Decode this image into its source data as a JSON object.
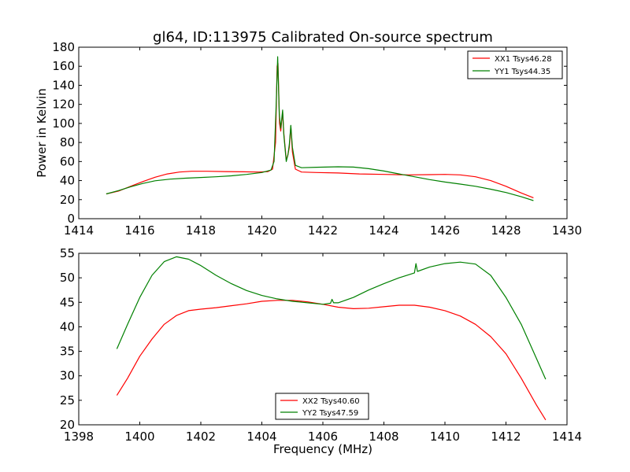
{
  "title": "gl64, ID:113975 Calibrated On-source spectrum",
  "xlabel": "Frequency (MHz)",
  "colors": {
    "red": "#ff0000",
    "green": "#008000"
  },
  "chart_data": [
    {
      "type": "line",
      "ylabel": "Power in Kelvin",
      "xlim": [
        1414,
        1430
      ],
      "ylim": [
        0,
        180
      ],
      "xticks": [
        "1414",
        "1416",
        "1418",
        "1420",
        "1422",
        "1424",
        "1426",
        "1428",
        "1430"
      ],
      "yticks": [
        "0",
        "20",
        "40",
        "60",
        "80",
        "100",
        "120",
        "140",
        "160",
        "180"
      ],
      "legend_position": "top-right",
      "series": [
        {
          "name": "XX1 Tsys46.28",
          "color": "#ff0000",
          "points": [
            [
              1414.9,
              26
            ],
            [
              1415.3,
              29
            ],
            [
              1415.7,
              34
            ],
            [
              1416.1,
              39
            ],
            [
              1416.5,
              43.5
            ],
            [
              1416.9,
              47
            ],
            [
              1417.3,
              49
            ],
            [
              1417.7,
              49.8
            ],
            [
              1418.2,
              49.8
            ],
            [
              1418.8,
              49.5
            ],
            [
              1419.4,
              49.2
            ],
            [
              1419.9,
              49
            ],
            [
              1420.2,
              49.5
            ],
            [
              1420.35,
              52
            ],
            [
              1420.45,
              80
            ],
            [
              1420.5,
              160
            ],
            [
              1420.53,
              163
            ],
            [
              1420.58,
              100
            ],
            [
              1420.62,
              92
            ],
            [
              1420.68,
              112
            ],
            [
              1420.72,
              90
            ],
            [
              1420.8,
              62
            ],
            [
              1420.85,
              66
            ],
            [
              1420.9,
              75
            ],
            [
              1420.95,
              97
            ],
            [
              1421.0,
              70
            ],
            [
              1421.1,
              52
            ],
            [
              1421.3,
              49
            ],
            [
              1421.8,
              48.5
            ],
            [
              1422.5,
              48
            ],
            [
              1423.2,
              47
            ],
            [
              1424,
              46.5
            ],
            [
              1424.8,
              46
            ],
            [
              1425.5,
              46.2
            ],
            [
              1426,
              46.5
            ],
            [
              1426.5,
              46
            ],
            [
              1427,
              44
            ],
            [
              1427.5,
              40
            ],
            [
              1428,
              34
            ],
            [
              1428.5,
              27
            ],
            [
              1428.9,
              22
            ]
          ]
        },
        {
          "name": "YY1 Tsys44.35",
          "color": "#008000",
          "points": [
            [
              1414.9,
              26
            ],
            [
              1415.3,
              29.5
            ],
            [
              1415.7,
              33.5
            ],
            [
              1416.1,
              37
            ],
            [
              1416.5,
              39.8
            ],
            [
              1417,
              41.5
            ],
            [
              1417.5,
              42.5
            ],
            [
              1418,
              43.3
            ],
            [
              1418.5,
              44
            ],
            [
              1419,
              45
            ],
            [
              1419.5,
              46.5
            ],
            [
              1420,
              48.5
            ],
            [
              1420.3,
              51
            ],
            [
              1420.4,
              60
            ],
            [
              1420.47,
              120
            ],
            [
              1420.52,
              170
            ],
            [
              1420.57,
              110
            ],
            [
              1420.62,
              95
            ],
            [
              1420.68,
              114
            ],
            [
              1420.72,
              88
            ],
            [
              1420.8,
              60
            ],
            [
              1420.86,
              68
            ],
            [
              1420.9,
              78
            ],
            [
              1420.95,
              98
            ],
            [
              1421.0,
              75
            ],
            [
              1421.1,
              56
            ],
            [
              1421.3,
              53.5
            ],
            [
              1421.8,
              54
            ],
            [
              1422.5,
              54.5
            ],
            [
              1423,
              54.2
            ],
            [
              1423.5,
              52.5
            ],
            [
              1424,
              50
            ],
            [
              1424.5,
              47
            ],
            [
              1425,
              44
            ],
            [
              1425.5,
              41
            ],
            [
              1426,
              38.5
            ],
            [
              1426.5,
              36.3
            ],
            [
              1427,
              34
            ],
            [
              1427.5,
              31
            ],
            [
              1428,
              27.5
            ],
            [
              1428.5,
              23
            ],
            [
              1428.9,
              19
            ]
          ]
        }
      ]
    },
    {
      "type": "line",
      "ylabel": "",
      "xlim": [
        1398,
        1414
      ],
      "ylim": [
        20,
        55
      ],
      "xticks": [
        "1398",
        "1400",
        "1402",
        "1404",
        "1406",
        "1408",
        "1410",
        "1412",
        "1414"
      ],
      "yticks": [
        "20",
        "25",
        "30",
        "35",
        "40",
        "45",
        "50",
        "55"
      ],
      "legend_position": "bottom-center",
      "series": [
        {
          "name": "XX2 Tsys40.60",
          "color": "#ff0000",
          "points": [
            [
              1399.25,
              26
            ],
            [
              1399.6,
              29.5
            ],
            [
              1400,
              34
            ],
            [
              1400.4,
              37.5
            ],
            [
              1400.8,
              40.5
            ],
            [
              1401.2,
              42.3
            ],
            [
              1401.6,
              43.3
            ],
            [
              1402,
              43.6
            ],
            [
              1402.5,
              43.9
            ],
            [
              1403,
              44.3
            ],
            [
              1403.5,
              44.7
            ],
            [
              1404,
              45.2
            ],
            [
              1404.5,
              45.4
            ],
            [
              1405,
              45.4
            ],
            [
              1405.5,
              45.1
            ],
            [
              1406,
              44.6
            ],
            [
              1406.5,
              44
            ],
            [
              1407,
              43.7
            ],
            [
              1407.5,
              43.8
            ],
            [
              1408,
              44.1
            ],
            [
              1408.5,
              44.4
            ],
            [
              1409,
              44.4
            ],
            [
              1409.5,
              44
            ],
            [
              1410,
              43.3
            ],
            [
              1410.5,
              42.2
            ],
            [
              1411,
              40.5
            ],
            [
              1411.5,
              38
            ],
            [
              1412,
              34.5
            ],
            [
              1412.5,
              29.5
            ],
            [
              1413,
              24
            ],
            [
              1413.3,
              21
            ]
          ]
        },
        {
          "name": "YY2 Tsys47.59",
          "color": "#008000",
          "points": [
            [
              1399.25,
              35.5
            ],
            [
              1399.6,
              40.5
            ],
            [
              1400,
              46
            ],
            [
              1400.4,
              50.5
            ],
            [
              1400.8,
              53.3
            ],
            [
              1401.2,
              54.3
            ],
            [
              1401.6,
              53.8
            ],
            [
              1402,
              52.5
            ],
            [
              1402.5,
              50.5
            ],
            [
              1403,
              48.8
            ],
            [
              1403.5,
              47.4
            ],
            [
              1404,
              46.4
            ],
            [
              1404.5,
              45.7
            ],
            [
              1405,
              45.2
            ],
            [
              1405.5,
              44.9
            ],
            [
              1406,
              44.6
            ],
            [
              1406.25,
              44.8
            ],
            [
              1406.3,
              45.6
            ],
            [
              1406.35,
              44.9
            ],
            [
              1406.5,
              44.9
            ],
            [
              1407,
              46
            ],
            [
              1407.5,
              47.5
            ],
            [
              1408,
              48.8
            ],
            [
              1408.5,
              50
            ],
            [
              1409,
              51
            ],
            [
              1409.05,
              52.9
            ],
            [
              1409.1,
              51.3
            ],
            [
              1409.5,
              52.2
            ],
            [
              1410,
              52.9
            ],
            [
              1410.5,
              53.2
            ],
            [
              1411,
              52.8
            ],
            [
              1411.5,
              50.5
            ],
            [
              1412,
              46
            ],
            [
              1412.5,
              40.5
            ],
            [
              1413,
              33.5
            ],
            [
              1413.3,
              29.3
            ]
          ]
        }
      ]
    }
  ]
}
